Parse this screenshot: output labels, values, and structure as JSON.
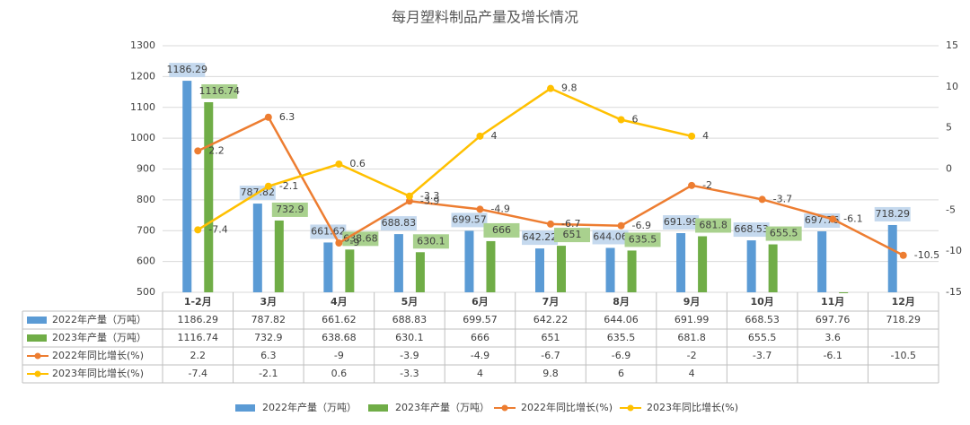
{
  "chart_data": {
    "type": "bar",
    "title": "每月塑料制品产量及增长情况",
    "categories": [
      "1-2月",
      "3月",
      "4月",
      "5月",
      "6月",
      "7月",
      "8月",
      "9月",
      "10月",
      "11月",
      "12月"
    ],
    "series": [
      {
        "name": "2022年产量（万吨）",
        "type": "bar",
        "color": "#5b9bd5",
        "values": [
          1186.29,
          787.82,
          661.62,
          688.83,
          699.57,
          642.22,
          644.06,
          691.99,
          668.53,
          697.76,
          718.29
        ]
      },
      {
        "name": "2023年产量（万吨）",
        "type": "bar",
        "color": "#70ad47",
        "values": [
          1116.74,
          732.9,
          638.68,
          630.1,
          666,
          651,
          635.5,
          681.8,
          655.5,
          3.6,
          null
        ]
      },
      {
        "name": "2022年同比增长(%)",
        "type": "line",
        "axis": "y2",
        "color": "#ed7d31",
        "values": [
          2.2,
          6.3,
          -9,
          -3.9,
          -4.9,
          -6.7,
          -6.9,
          -2,
          -3.7,
          -6.1,
          -10.5
        ]
      },
      {
        "name": "2023年同比增长(%)",
        "type": "line",
        "axis": "y2",
        "color": "#ffc000",
        "values": [
          -7.4,
          -2.1,
          0.6,
          -3.3,
          4,
          9.8,
          6,
          4,
          null,
          null,
          null
        ]
      }
    ],
    "ylim": [
      500,
      1300
    ],
    "yticks": [
      500,
      600,
      700,
      800,
      900,
      1000,
      1100,
      1200,
      1300
    ],
    "y2lim": [
      -15,
      15
    ],
    "y2ticks": [
      -15,
      -10,
      -5,
      0,
      5,
      10,
      15
    ],
    "grid": true
  }
}
